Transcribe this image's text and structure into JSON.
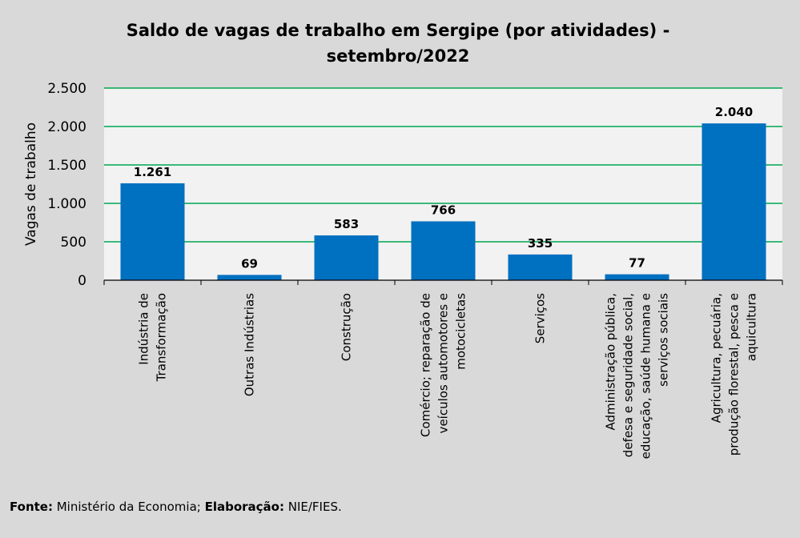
{
  "chart_data": {
    "type": "bar",
    "title_lines": [
      "Saldo de vagas de trabalho  em Sergipe (por atividades) -",
      "setembro/2022"
    ],
    "ylabel": "Vagas de trabalho",
    "xlabel": "",
    "ylim": [
      0,
      2500
    ],
    "yticks": [
      0,
      500,
      1000,
      1500,
      2000,
      2500
    ],
    "ytick_labels": [
      "0",
      "500",
      "1.000",
      "1.500",
      "2.000",
      "2.500"
    ],
    "grid": true,
    "bar_color": "#0070c0",
    "grid_color": "#00a651",
    "plot_bg": "#f2f2f2",
    "categories": [
      "Indústria de Transformação",
      "Outras Indústrias",
      "Construção",
      "Comércio; reparação de veículos automotores e motocicletas",
      "Serviços",
      "Administração pública, defesa e seguridade social, educação, saúde humana e serviços sociais",
      "Agricultura, pecuária, produção florestal, pesca e aquicultura"
    ],
    "category_label_lines": [
      [
        "Indústria de",
        "Transformação"
      ],
      [
        "Outras Indústrias"
      ],
      [
        "Construção"
      ],
      [
        "Comércio; reparação de",
        "veículos automotores e",
        "motocicletas"
      ],
      [
        "Serviços"
      ],
      [
        "Administração pública,",
        "defesa e seguridade social,",
        "educação, saúde humana e",
        "serviços sociais"
      ],
      [
        "Agricultura, pecuária,",
        "produção florestal, pesca e",
        "aquicultura"
      ]
    ],
    "values": [
      1261,
      69,
      583,
      766,
      335,
      77,
      2040
    ],
    "value_labels": [
      "1.261",
      "69",
      "583",
      "766",
      "335",
      "77",
      "2.040"
    ]
  },
  "footer": {
    "source_label": "Fonte:",
    "source_text": " Ministério da Economia; ",
    "credit_label": "Elaboração:",
    "credit_text": " NIE/FIES."
  }
}
